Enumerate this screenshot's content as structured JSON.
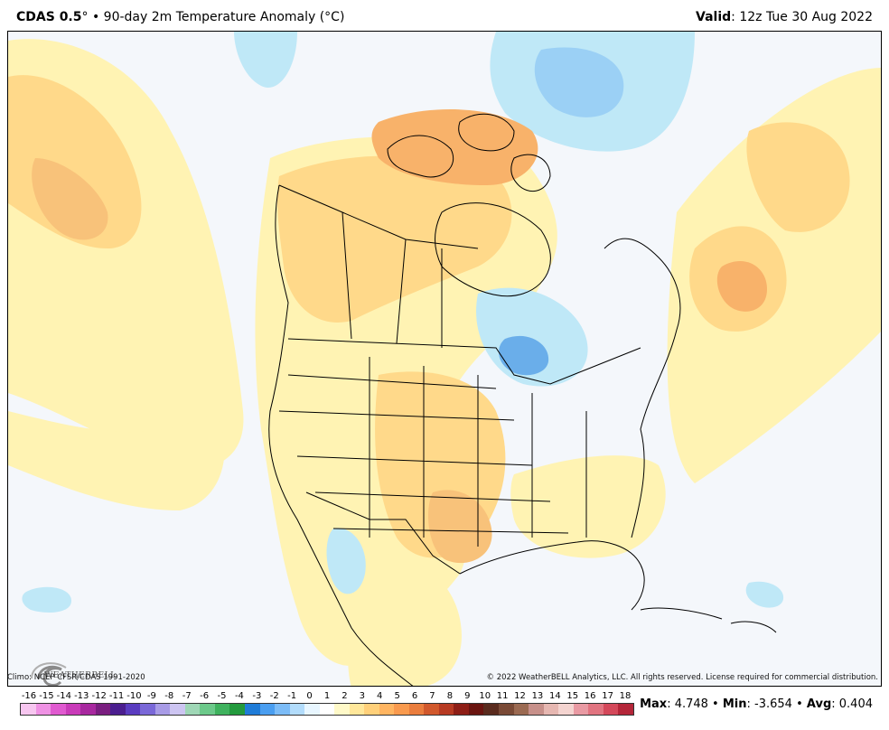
{
  "header": {
    "model": "CDAS 0.5",
    "degree": "°",
    "bullet": "•",
    "title": "90-day 2m Temperature Anomaly (°C)",
    "valid_label": "Valid",
    "valid_value": ": 12z Tue 30 Aug 2022"
  },
  "footer": {
    "climo": "Climo: NCEP CFSR/CDAS 1991-2020",
    "copyright": "© 2022 WeatherBELL Analytics, LLC. All rights reserved. License required for commercial distribution."
  },
  "logo": {
    "text": "WEATHERBELL"
  },
  "colorbar": {
    "labels": [
      "-16",
      "-15",
      "-14",
      "-13",
      "-12",
      "-11",
      "-10",
      "-9",
      "-8",
      "-7",
      "-6",
      "-5",
      "-4",
      "-3",
      "-2",
      "-1",
      "0",
      "1",
      "2",
      "3",
      "4",
      "5",
      "6",
      "7",
      "8",
      "9",
      "10",
      "11",
      "12",
      "13",
      "14",
      "15",
      "16",
      "17",
      "18"
    ],
    "colors": [
      "#f7c6f0",
      "#ef92e4",
      "#e05ad0",
      "#c93bb9",
      "#a8289f",
      "#7a1e80",
      "#4b1e8f",
      "#5a3cc0",
      "#7a68d8",
      "#a89be6",
      "#cdc5f2",
      "#9fd7b6",
      "#6cc98a",
      "#3fb25e",
      "#239a3d",
      "#1f7cd8",
      "#4a9ef0",
      "#7cbcf7",
      "#b2dcfb",
      "#e8f6ff",
      "#ffffff",
      "#fff9c8",
      "#ffe79a",
      "#ffd07a",
      "#ffb561",
      "#f99a4e",
      "#ea7d3d",
      "#d1582c",
      "#b73a22",
      "#8e1e16",
      "#6a1410",
      "#5a2b1e",
      "#7a4a36",
      "#9b6a52",
      "#c7908a",
      "#e6b7b1",
      "#f4d4d0",
      "#e99aa3",
      "#e17480",
      "#d4485a",
      "#b42639"
    ]
  },
  "stats": {
    "max_label": "Max",
    "max_value": ": 4.748",
    "min_label": "Min",
    "min_value": ": -3.654",
    "avg_label": "Avg",
    "avg_value": ": 0.404",
    "sep": " • "
  },
  "colors": {
    "land_bg": "#f4f7fb",
    "warm_light": "#fff3b3",
    "warm_mid": "#ffd98a",
    "warm_strong": "#f8b26a",
    "cool_light": "#bfe8f7",
    "cool_mid": "#9bd0f5",
    "cool_strong": "#6aaeea",
    "border": "#000000"
  }
}
